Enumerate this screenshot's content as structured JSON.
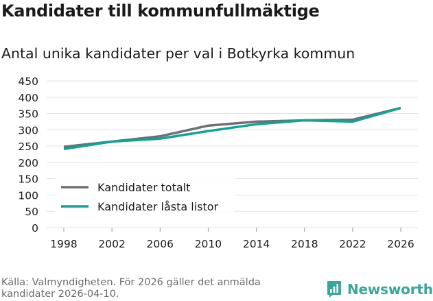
{
  "header": {
    "title": "Kandidater till kommunfullmäktige",
    "subtitle": "Antal unika kandidater per val i Botkyrka kommun"
  },
  "footer": {
    "source": "Källa: Valmyndigheten. För 2026 gäller det anmälda kandidater 2026-04-10.",
    "brand": "Newsworthy"
  },
  "colors": {
    "series_total": "#6f6e73",
    "series_locked": "#0fa397",
    "grid": "#e3e3e3",
    "brand": "#3aa69a"
  },
  "chart_data": {
    "type": "line",
    "title": "Antal unika kandidater per val i Botkyrka kommun",
    "xlabel": "",
    "ylabel": "",
    "x": [
      "1998",
      "2002",
      "2006",
      "2010",
      "2014",
      "2018",
      "2022",
      "2026"
    ],
    "ylim": [
      0,
      450
    ],
    "yticks": [
      0,
      50,
      100,
      150,
      200,
      250,
      300,
      350,
      400,
      450
    ],
    "grid": true,
    "legend_position": "lower-left",
    "series": [
      {
        "name": "Kandidater totalt",
        "values": [
          248,
          264,
          280,
          313,
          325,
          329,
          331,
          367
        ]
      },
      {
        "name": "Kandidater låsta listor",
        "values": [
          241,
          264,
          273,
          296,
          317,
          329,
          325,
          367
        ]
      }
    ]
  }
}
